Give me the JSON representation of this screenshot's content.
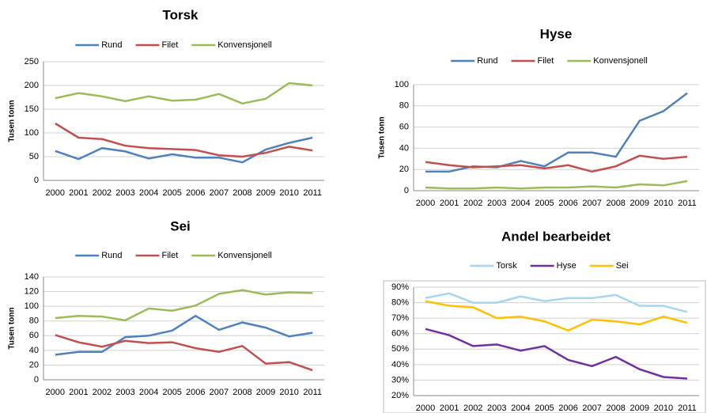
{
  "chart_data": [
    {
      "type": "line",
      "title": "Torsk",
      "y_label": "Tusen tonn",
      "categories": [
        "2000",
        "2001",
        "2002",
        "2003",
        "2004",
        "2005",
        "2006",
        "2007",
        "2008",
        "2009",
        "2010",
        "2011"
      ],
      "series": [
        {
          "name": "Rund",
          "color": "#4f81bd",
          "values": [
            62,
            45,
            68,
            61,
            46,
            55,
            48,
            48,
            38,
            65,
            79,
            90
          ]
        },
        {
          "name": "Filet",
          "color": "#c0504d",
          "values": [
            120,
            90,
            87,
            73,
            68,
            66,
            64,
            53,
            50,
            58,
            71,
            63
          ]
        },
        {
          "name": "Konvensjonell",
          "color": "#9bbb59",
          "values": [
            173,
            184,
            177,
            167,
            177,
            168,
            170,
            182,
            162,
            172,
            205,
            200
          ]
        }
      ],
      "ylim": [
        0,
        250
      ],
      "yticks": [
        0,
        50,
        100,
        150,
        200,
        250
      ],
      "grid": true
    },
    {
      "type": "line",
      "title": "Hyse",
      "y_label": "Tusen tonn",
      "categories": [
        "2000",
        "2001",
        "2002",
        "2003",
        "2004",
        "2005",
        "2006",
        "2007",
        "2008",
        "2009",
        "2010",
        "2011"
      ],
      "series": [
        {
          "name": "Rund",
          "color": "#4f81bd",
          "values": [
            18,
            18,
            23,
            22,
            28,
            23,
            36,
            36,
            32,
            66,
            75,
            92
          ]
        },
        {
          "name": "Filet",
          "color": "#c0504d",
          "values": [
            27,
            24,
            22,
            23,
            24,
            21,
            24,
            18,
            23,
            33,
            30,
            32
          ]
        },
        {
          "name": "Konvensjonell",
          "color": "#9bbb59",
          "values": [
            3,
            2,
            2,
            3,
            2,
            3,
            3,
            4,
            3,
            6,
            5,
            9
          ]
        }
      ],
      "ylim": [
        0,
        100
      ],
      "yticks": [
        0,
        20,
        40,
        60,
        80,
        100
      ],
      "grid": true
    },
    {
      "type": "line",
      "title": "Sei",
      "y_label": "Tusen tonn",
      "categories": [
        "2000",
        "2001",
        "2002",
        "2003",
        "2004",
        "2005",
        "2006",
        "2007",
        "2008",
        "2009",
        "2010",
        "2011"
      ],
      "series": [
        {
          "name": "Rund",
          "color": "#4f81bd",
          "values": [
            34,
            38,
            38,
            58,
            60,
            67,
            87,
            68,
            78,
            71,
            59,
            64
          ]
        },
        {
          "name": "Filet",
          "color": "#c0504d",
          "values": [
            61,
            51,
            45,
            53,
            50,
            51,
            43,
            38,
            46,
            22,
            24,
            13
          ]
        },
        {
          "name": "Konvensjonell",
          "color": "#9bbb59",
          "values": [
            84,
            87,
            86,
            81,
            97,
            94,
            101,
            117,
            122,
            116,
            119,
            118
          ]
        }
      ],
      "ylim": [
        0,
        140
      ],
      "yticks": [
        0,
        20,
        40,
        60,
        80,
        100,
        120,
        140
      ],
      "grid": true
    },
    {
      "type": "line",
      "title": "Andel bearbeidet",
      "categories": [
        "2000",
        "2001",
        "2002",
        "2003",
        "2004",
        "2005",
        "2006",
        "2007",
        "2008",
        "2009",
        "2010",
        "2011"
      ],
      "series": [
        {
          "name": "Torsk",
          "color": "#a6d5f0",
          "values": [
            83,
            86,
            80,
            80,
            84,
            81,
            83,
            83,
            85,
            78,
            78,
            74
          ]
        },
        {
          "name": "Hyse",
          "color": "#7030a0",
          "values": [
            63,
            59,
            52,
            53,
            49,
            52,
            43,
            39,
            45,
            37,
            32,
            31
          ]
        },
        {
          "name": "Sei",
          "color": "#ffc000",
          "values": [
            81,
            78,
            77,
            70,
            71,
            68,
            62,
            69,
            68,
            66,
            71,
            67
          ]
        }
      ],
      "ylim": [
        20,
        90
      ],
      "yticks": [
        {
          "value": 20,
          "label": "20%"
        },
        {
          "value": 30,
          "label": "30%"
        },
        {
          "value": 40,
          "label": "40%"
        },
        {
          "value": 50,
          "label": "50%"
        },
        {
          "value": 60,
          "label": "60%"
        },
        {
          "value": 70,
          "label": "70%"
        },
        {
          "value": 80,
          "label": "80%"
        },
        {
          "value": 90,
          "label": "90%"
        }
      ],
      "grid": true
    }
  ]
}
